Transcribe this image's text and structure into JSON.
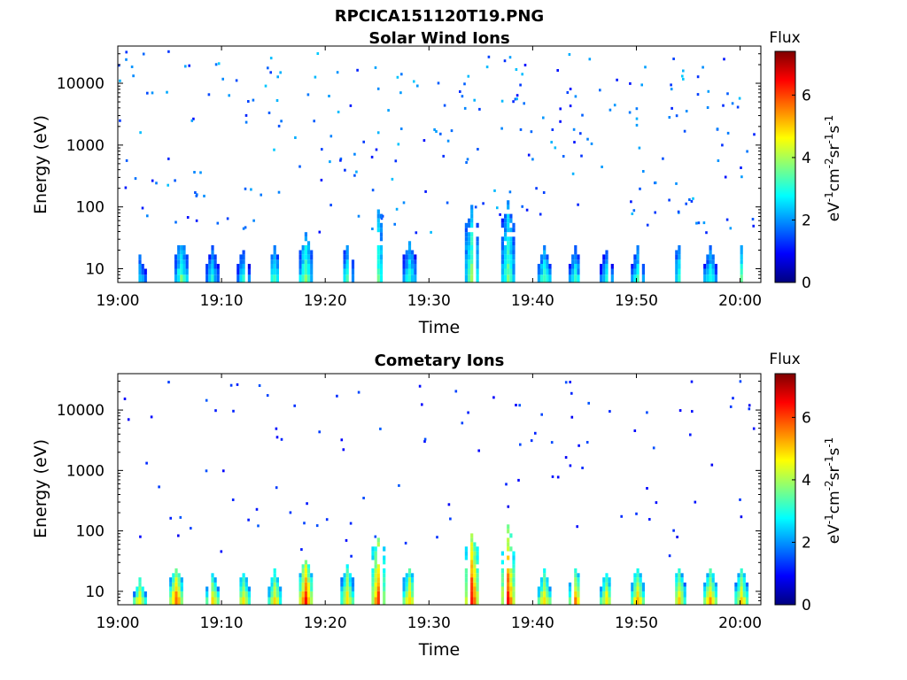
{
  "figure": {
    "title_line1": "RPCICA151120T19.PNG",
    "xlabel": "Time",
    "ylabel": "Energy (eV)",
    "colorbar_title": "Flux",
    "colorbar_unit_parts": [
      "eV",
      "-1",
      "cm",
      "-2",
      "sr",
      "-1",
      "s",
      "-1"
    ]
  },
  "chart_data": [
    {
      "type": "heatmap",
      "title": "Solar Wind Ions",
      "xlabel": "Time",
      "ylabel": "Energy (eV)",
      "x_ticks": [
        "19:00",
        "19:10",
        "19:20",
        "19:30",
        "19:40",
        "19:50",
        "20:00"
      ],
      "y_ticks": [
        10,
        100,
        1000,
        10000
      ],
      "y_scale": "log",
      "ylim": [
        6,
        40000
      ],
      "colorbar": {
        "label": "Flux",
        "range": [
          0,
          7.4
        ],
        "ticks": [
          0,
          2,
          4,
          6
        ]
      },
      "bursts": [
        {
          "t": "19:02",
          "flux": 2.6,
          "emax": 15
        },
        {
          "t": "19:06",
          "flux": 3.5,
          "emax": 30
        },
        {
          "t": "19:09",
          "flux": 2.8,
          "emax": 20
        },
        {
          "t": "19:12",
          "flux": 2.9,
          "emax": 18
        },
        {
          "t": "19:15",
          "flux": 3.2,
          "emax": 20
        },
        {
          "t": "19:18",
          "flux": 3.8,
          "emax": 35
        },
        {
          "t": "19:22",
          "flux": 3.1,
          "emax": 22
        },
        {
          "t": "19:25",
          "flux": 3.4,
          "emax": 90
        },
        {
          "t": "19:28",
          "flux": 3.2,
          "emax": 25
        },
        {
          "t": "19:34",
          "flux": 3.9,
          "emax": 95
        },
        {
          "t": "19:37.5",
          "flux": 3.6,
          "emax": 110
        },
        {
          "t": "19:41",
          "flux": 3.4,
          "emax": 20
        },
        {
          "t": "19:44",
          "flux": 3.0,
          "emax": 20
        },
        {
          "t": "19:47",
          "flux": 2.8,
          "emax": 18
        },
        {
          "t": "19:50",
          "flux": 3.1,
          "emax": 20
        },
        {
          "t": "19:54",
          "flux": 3.2,
          "emax": 22
        },
        {
          "t": "19:57",
          "flux": 3.0,
          "emax": 20
        },
        {
          "t": "20:00",
          "flux": 3.3,
          "emax": 22
        }
      ],
      "background": {
        "count": 260,
        "flux_range": [
          1.0,
          2.4
        ]
      }
    },
    {
      "type": "heatmap",
      "title": "Cometary Ions",
      "xlabel": "Time",
      "ylabel": "Energy (eV)",
      "x_ticks": [
        "19:00",
        "19:10",
        "19:20",
        "19:30",
        "19:40",
        "19:50",
        "20:00"
      ],
      "y_ticks": [
        10,
        100,
        1000,
        10000
      ],
      "y_scale": "log",
      "ylim": [
        6,
        40000
      ],
      "colorbar": {
        "label": "Flux",
        "range": [
          0,
          7.4
        ],
        "ticks": [
          0,
          2,
          4,
          6
        ]
      },
      "bursts": [
        {
          "t": "19:02",
          "flux": 4.9,
          "emax": 15
        },
        {
          "t": "19:05.5",
          "flux": 5.9,
          "emax": 25
        },
        {
          "t": "19:09",
          "flux": 5.0,
          "emax": 18
        },
        {
          "t": "19:12",
          "flux": 5.0,
          "emax": 18
        },
        {
          "t": "19:15",
          "flux": 4.9,
          "emax": 20
        },
        {
          "t": "19:18",
          "flux": 6.4,
          "emax": 35
        },
        {
          "t": "19:22",
          "flux": 5.0,
          "emax": 25
        },
        {
          "t": "19:25",
          "flux": 6.1,
          "emax": 90
        },
        {
          "t": "19:28",
          "flux": 5.1,
          "emax": 25
        },
        {
          "t": "19:34",
          "flux": 6.6,
          "emax": 95
        },
        {
          "t": "19:37.5",
          "flux": 6.4,
          "emax": 110
        },
        {
          "t": "19:41",
          "flux": 5.1,
          "emax": 20
        },
        {
          "t": "19:44",
          "flux": 5.5,
          "emax": 22
        },
        {
          "t": "19:47",
          "flux": 5.0,
          "emax": 18
        },
        {
          "t": "19:50",
          "flux": 5.3,
          "emax": 22
        },
        {
          "t": "19:54",
          "flux": 5.0,
          "emax": 22
        },
        {
          "t": "19:57",
          "flux": 5.3,
          "emax": 22
        },
        {
          "t": "20:00",
          "flux": 5.0,
          "emax": 22
        }
      ],
      "background": {
        "count": 110,
        "flux_range": [
          0.8,
          1.6
        ]
      }
    }
  ]
}
